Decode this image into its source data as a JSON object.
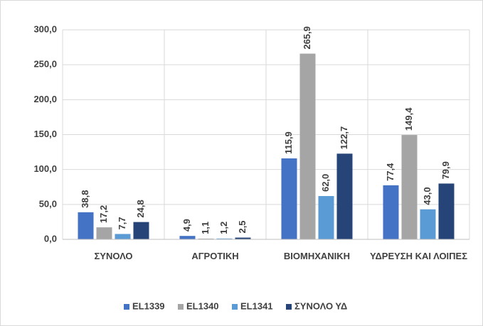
{
  "chart_data": {
    "type": "bar",
    "categories": [
      "ΣΥΝΟΛΟ",
      "ΑΓΡΟΤΙΚΗ",
      "ΒΙΟΜΗΧΑΝΙΚΗ",
      "ΥΔΡΕΥΣΗ ΚΑΙ ΛΟΙΠΕΣ"
    ],
    "series": [
      {
        "name": "EL1339",
        "color": "#4472c4",
        "values": [
          38.8,
          4.9,
          115.9,
          77.4
        ],
        "value_labels": [
          "38,8",
          "4,9",
          "115,9",
          "77,4"
        ]
      },
      {
        "name": "EL1340",
        "color": "#a5a5a5",
        "values": [
          17.2,
          1.1,
          265.9,
          149.4
        ],
        "value_labels": [
          "17,2",
          "1,1",
          "265,9",
          "149,4"
        ]
      },
      {
        "name": "EL1341",
        "color": "#5b9bd5",
        "values": [
          7.7,
          1.2,
          62.0,
          43.0
        ],
        "value_labels": [
          "7,7",
          "1,2",
          "62,0",
          "43,0"
        ]
      },
      {
        "name": "ΣΥΝΟΛΟ ΥΔ",
        "color": "#264478",
        "values": [
          24.8,
          2.5,
          122.7,
          79.9
        ],
        "value_labels": [
          "24,8",
          "2,5",
          "122,7",
          "79,9"
        ]
      }
    ],
    "ylim": [
      0,
      300
    ],
    "yticks": [
      {
        "value": 0,
        "label": "0,0"
      },
      {
        "value": 50,
        "label": "50,0"
      },
      {
        "value": 100,
        "label": "100,0"
      },
      {
        "value": 150,
        "label": "150,0"
      },
      {
        "value": 200,
        "label": "200,0"
      },
      {
        "value": 250,
        "label": "250,0"
      },
      {
        "value": 300,
        "label": "300,0"
      }
    ],
    "grid": true,
    "legend": "bottom"
  }
}
